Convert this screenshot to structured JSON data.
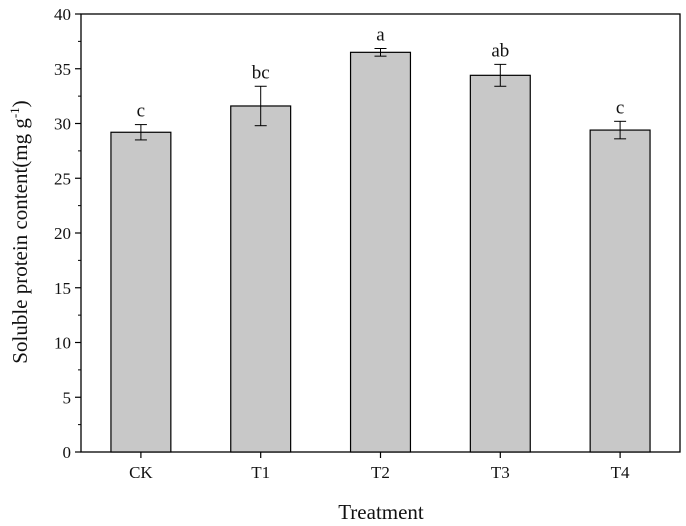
{
  "chart_data": {
    "type": "bar",
    "categories": [
      "CK",
      "T1",
      "T2",
      "T3",
      "T4"
    ],
    "values": [
      29.2,
      31.6,
      36.5,
      34.4,
      29.4
    ],
    "errors": [
      0.7,
      1.8,
      0.35,
      1.0,
      0.8
    ],
    "significance_labels": [
      "c",
      "bc",
      "a",
      "ab",
      "c"
    ],
    "xlabel": "Treatment",
    "ylabel_main": "Soluble protein content(mg g",
    "ylabel_sup": "-1",
    "ylabel_end": ")",
    "ylim": [
      0,
      40
    ],
    "yticks": [
      "0",
      "5",
      "10",
      "15",
      "20",
      "25",
      "30",
      "35",
      "40"
    ],
    "bar_color": "#c8c8c8",
    "grid": false
  }
}
